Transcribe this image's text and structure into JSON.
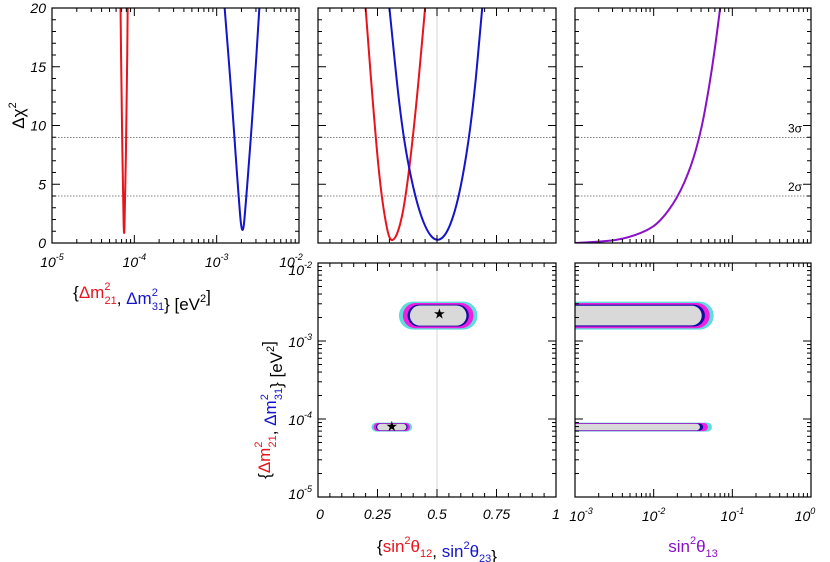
{
  "colors": {
    "red": "#e8141c",
    "blue": "#1414c8",
    "purple": "#8a10c8",
    "cyan": "#5fdcdc",
    "magenta": "#f020e0",
    "navy": "#1010a0",
    "fill_grey": "#d9d9d9"
  },
  "chart_data": [
    {
      "panel": "top-left",
      "type": "line",
      "xscale": "log",
      "xlim": [
        1e-05,
        0.01
      ],
      "ylim": [
        0,
        20
      ],
      "ylabel": "Δχ²",
      "xlabel_parts": [
        "{",
        "Δm²₂₁",
        ", ",
        "Δm²₃₁",
        "} [eV²]"
      ],
      "x_ticks": [
        "10⁻⁵",
        "10⁻⁴",
        "10⁻³",
        "10⁻²"
      ],
      "y_ticks": [
        "0",
        "5",
        "10",
        "15",
        "20"
      ],
      "series": [
        {
          "name": "Δm²₂₁",
          "color": "red",
          "x": [
            6.8e-05,
            7e-05,
            7.3e-05,
            7.5e-05,
            7.7e-05,
            8.1e-05,
            8.3e-05
          ],
          "y": [
            20,
            12,
            4,
            0,
            3,
            12,
            20
          ]
        },
        {
          "name": "Δm²₃₁",
          "color": "blue",
          "x": [
            0.00125,
            0.0015,
            0.0018,
            0.00205,
            0.0023,
            0.0028,
            0.0033
          ],
          "y": [
            20,
            13,
            5,
            0,
            4,
            12,
            20
          ]
        }
      ]
    },
    {
      "panel": "top-middle",
      "type": "line",
      "xlim": [
        0,
        1
      ],
      "ylim": [
        0,
        20
      ],
      "series": [
        {
          "name": "sin²θ₁₂",
          "color": "red",
          "x": [
            0.2,
            0.23,
            0.26,
            0.29,
            0.31,
            0.34,
            0.37,
            0.41,
            0.45
          ],
          "y": [
            20,
            12,
            5,
            1,
            0,
            1,
            4,
            11,
            20
          ]
        },
        {
          "name": "sin²θ₂₃",
          "color": "blue",
          "x": [
            0.3,
            0.35,
            0.4,
            0.45,
            0.5,
            0.55,
            0.6,
            0.65,
            0.69
          ],
          "y": [
            20,
            10,
            4.5,
            1.2,
            0,
            1,
            4.5,
            11,
            20
          ]
        }
      ]
    },
    {
      "panel": "top-right",
      "type": "line",
      "xscale": "log",
      "xlim": [
        0.001,
        1
      ],
      "ylim": [
        0,
        20
      ],
      "sigma_labels": [
        "3σ",
        "2σ"
      ],
      "sigma_levels": [
        9,
        4
      ],
      "series": [
        {
          "name": "sin²θ₁₃",
          "color": "purple",
          "x": [
            0.001,
            0.002,
            0.004,
            0.008,
            0.012,
            0.02,
            0.03,
            0.04,
            0.05,
            0.06,
            0.07
          ],
          "y": [
            0,
            0.1,
            0.3,
            1.0,
            1.8,
            3.8,
            6.5,
            9.5,
            13,
            16.5,
            20
          ]
        }
      ]
    },
    {
      "panel": "bottom-middle",
      "type": "scatter",
      "xlim": [
        0,
        1
      ],
      "yscale": "log",
      "ylim": [
        1e-05,
        0.01
      ],
      "x_ticks": [
        "0",
        "0.25",
        "0.5",
        "0.75",
        "1"
      ],
      "y_ticks": [
        "10⁻⁵",
        "10⁻⁴",
        "10⁻³",
        "10⁻²"
      ],
      "xlabel_parts": [
        "{",
        "sin²θ₁₂",
        ", ",
        "sin²θ₂₃",
        "}"
      ],
      "ylabel_parts": [
        "{",
        "Δm²₂₁",
        ", ",
        "Δm²₃₁",
        "} [eV²]"
      ],
      "best_fit": [
        {
          "x": 0.31,
          "y": 7.9e-05
        },
        {
          "x": 0.51,
          "y": 0.0022
        }
      ],
      "regions": [
        {
          "cx": 0.505,
          "cy": 0.0022,
          "x_half": 0.165,
          "y_lo": 0.0014,
          "y_hi": 0.0032
        },
        {
          "cx": 0.31,
          "cy": 7.9e-05,
          "x_half": 0.085,
          "y_lo": 6.9e-05,
          "y_hi": 9e-05
        }
      ]
    },
    {
      "panel": "bottom-right",
      "type": "scatter",
      "xscale": "log",
      "xlim": [
        0.001,
        1
      ],
      "yscale": "log",
      "ylim": [
        1e-05,
        0.01
      ],
      "x_ticks": [
        "10⁻³",
        "10⁻²",
        "10⁻¹",
        "10⁰"
      ],
      "xlabel": "sin²θ₁₃",
      "regions": [
        {
          "x_hi": 0.058,
          "y_lo": 0.0014,
          "y_hi": 0.0032
        },
        {
          "x_hi": 0.055,
          "y_lo": 6.9e-05,
          "y_hi": 9e-05
        }
      ]
    }
  ]
}
